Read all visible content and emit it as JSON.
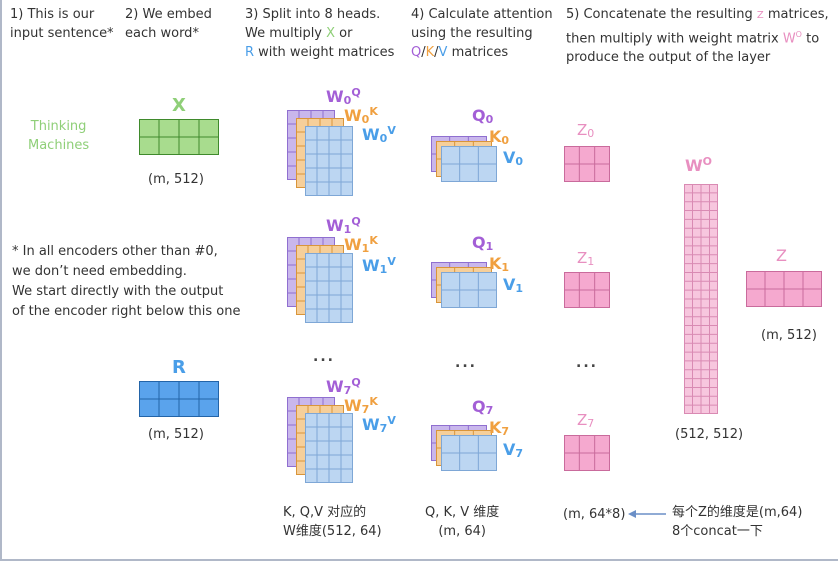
{
  "steps": {
    "s1": [
      "1) This is our",
      "input sentence*"
    ],
    "s2": [
      "2) We embed",
      "each word*"
    ],
    "s3_line1": "3) Split into 8 heads.",
    "s3_line2_a": "We multiply ",
    "s3_line2_x": "X",
    "s3_line2_b": " or",
    "s3_line3_r": "R",
    "s3_line3_b": " with weight matrices",
    "s4_line1": "4) Calculate attention",
    "s4_line2": "using the resulting",
    "s4_q": "Q",
    "s4_k": "K",
    "s4_v": "V",
    "s4_sep": "/",
    "s4_tail": " matrices",
    "s5_line1_a": "5) Concatenate the resulting ",
    "s5_line1_z": "Z",
    "s5_line1_b": " matrices,",
    "s5_line2_a": "then multiply with weight matrix ",
    "s5_line2_w": "W",
    "s5_line2_wsup": "O",
    "s5_line2_b": " to",
    "s5_line3": "produce the output of the layer"
  },
  "input_sentence": [
    "Thinking",
    "Machines"
  ],
  "embedding": {
    "x_label": "X",
    "x_shape": "(m, 512)",
    "r_label": "R",
    "r_shape": "(m, 512)"
  },
  "footnote": [
    "* In all encoders other than #0,",
    "we don’t need embedding.",
    "We start directly with the output",
    "of the encoder right below this one"
  ],
  "heads": [
    {
      "w": "W",
      "idx": "0",
      "q": "Q",
      "k": "K",
      "v": "V",
      "Q": "Q",
      "K": "K",
      "V": "V",
      "Z": "Z"
    },
    {
      "w": "W",
      "idx": "1",
      "q": "Q",
      "k": "K",
      "v": "V",
      "Q": "Q",
      "K": "K",
      "V": "V",
      "Z": "Z"
    },
    {
      "w": "W",
      "idx": "7",
      "q": "Q",
      "k": "K",
      "v": "V",
      "Q": "Q",
      "K": "K",
      "V": "V",
      "Z": "Z"
    }
  ],
  "ellipsis": "...",
  "wo": {
    "label": "W",
    "sup": "O",
    "shape": "(512, 512)"
  },
  "z_out": {
    "label": "Z",
    "shape": "(m, 512)"
  },
  "bottom": {
    "w_dims": [
      "K, Q,V 对应的",
      "W维度(512, 64)"
    ],
    "qkv_dims": [
      "Q, K, V 维度",
      "(m, 64)"
    ],
    "z_concat_dims": "(m, 64*8)",
    "note": [
      "每个Z的维度是(m,64)",
      "8个concat一下"
    ]
  },
  "colors": {
    "green": "#a8dc8e",
    "blue": "#5aa3ec",
    "purple": "#c9b7ec",
    "orange": "#f6cf9a",
    "lightblue": "#bcd6f2",
    "pink": "#f5a9cf",
    "arrow": "#6b8fc7"
  }
}
